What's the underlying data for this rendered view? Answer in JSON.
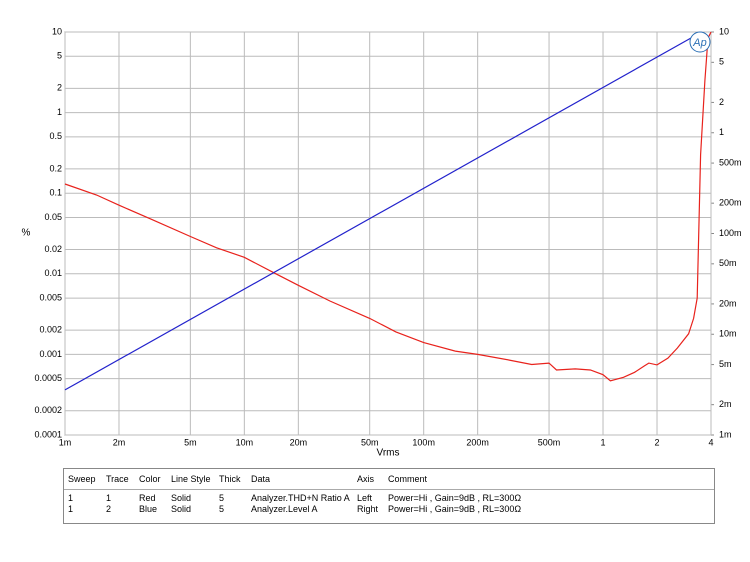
{
  "chart_data": {
    "type": "line",
    "y_label": "%",
    "x_label": "Vrms",
    "logo": "Ap",
    "xscale": "log",
    "yscale": "log",
    "y2scale": "log",
    "grid": true,
    "xlim": [
      0.001,
      4
    ],
    "ylim": [
      0.0001,
      10
    ],
    "y2lim": [
      0.001,
      10
    ],
    "xticks": [
      {
        "value": 0.001,
        "label": "1m"
      },
      {
        "value": 0.002,
        "label": "2m"
      },
      {
        "value": 0.005,
        "label": "5m"
      },
      {
        "value": 0.01,
        "label": "10m"
      },
      {
        "value": 0.02,
        "label": "20m"
      },
      {
        "value": 0.05,
        "label": "50m"
      },
      {
        "value": 0.1,
        "label": "100m"
      },
      {
        "value": 0.2,
        "label": "200m"
      },
      {
        "value": 0.5,
        "label": "500m"
      },
      1,
      2,
      4
    ],
    "yticks": [
      10,
      5,
      2,
      1,
      0.5,
      0.2,
      0.1,
      0.05,
      0.02,
      0.01,
      0.005,
      0.002,
      0.001,
      0.0005,
      0.0002,
      0.0001
    ],
    "y2ticks": [
      10,
      5,
      2,
      1,
      {
        "value": 0.5,
        "label": "500m"
      },
      {
        "value": 0.2,
        "label": "200m"
      },
      {
        "value": 0.1,
        "label": "100m"
      },
      {
        "value": 0.05,
        "label": "50m"
      },
      {
        "value": 0.02,
        "label": "20m"
      },
      {
        "value": 0.01,
        "label": "10m"
      },
      {
        "value": 0.005,
        "label": "5m"
      },
      {
        "value": 0.002,
        "label": "2m"
      },
      {
        "value": 0.001,
        "label": "1m"
      }
    ],
    "series": [
      {
        "name": "Analyzer.THD+N Ratio A",
        "color": "#e8221c",
        "axis": "y",
        "x": [
          0.001,
          0.0015,
          0.002,
          0.003,
          0.005,
          0.007,
          0.01,
          0.015,
          0.02,
          0.03,
          0.05,
          0.07,
          0.1,
          0.15,
          0.2,
          0.3,
          0.4,
          0.5,
          0.55,
          0.7,
          0.85,
          1,
          1.1,
          1.3,
          1.5,
          1.7,
          1.8,
          2,
          2.3,
          2.6,
          3,
          3.2,
          3.35,
          3.5,
          3.7,
          3.85,
          4
        ],
        "values": [
          0.13,
          0.095,
          0.071,
          0.048,
          0.029,
          0.021,
          0.016,
          0.01,
          0.0072,
          0.0046,
          0.0028,
          0.0019,
          0.0014,
          0.0011,
          0.001,
          0.00085,
          0.00075,
          0.00078,
          0.00064,
          0.00066,
          0.00064,
          0.00056,
          0.00047,
          0.00052,
          0.0006,
          0.00072,
          0.00078,
          0.00074,
          0.0009,
          0.0012,
          0.0018,
          0.0028,
          0.005,
          0.3,
          2.5,
          8.4,
          10
        ]
      },
      {
        "name": "Analyzer.Level A",
        "color": "#2222cc",
        "axis": "y2",
        "x": [
          0.001,
          3.55
        ],
        "values": [
          0.0028,
          10
        ]
      }
    ]
  },
  "table": {
    "header": [
      "Sweep",
      "Trace",
      "Color",
      "Line Style",
      "Thick",
      "Data",
      "Axis",
      "Comment"
    ],
    "rows": [
      [
        "1",
        "1",
        "Red",
        "Solid",
        "5",
        "Analyzer.THD+N Ratio A",
        "Left",
        "Power=Hi , Gain=9dB , RL=300Ω"
      ],
      [
        "1",
        "2",
        "Blue",
        "Solid",
        "5",
        "Analyzer.Level A",
        "Right",
        "Power=Hi , Gain=9dB , RL=300Ω"
      ]
    ]
  }
}
